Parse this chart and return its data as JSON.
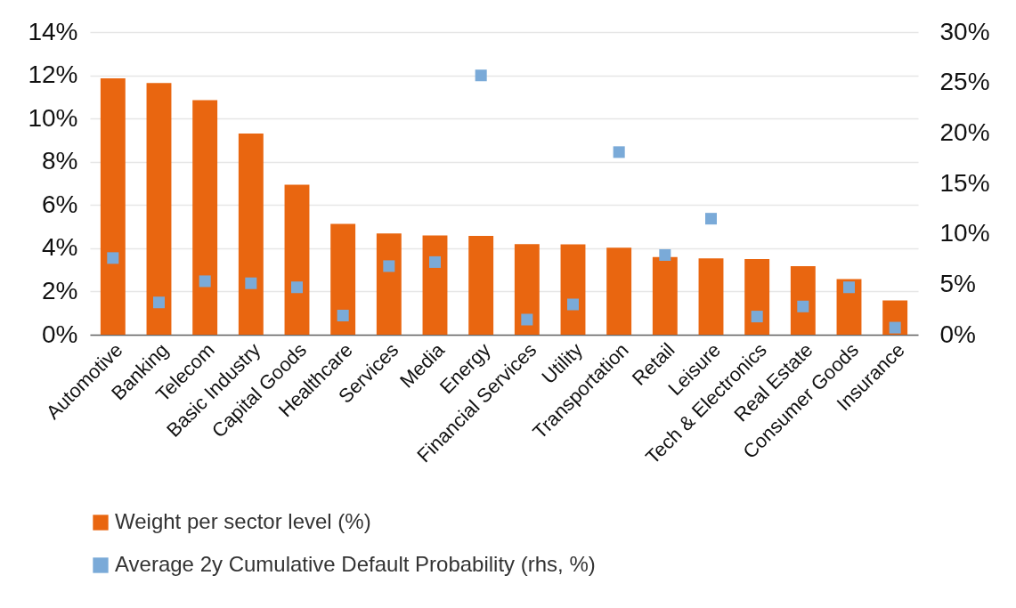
{
  "chart_data": {
    "type": "bar",
    "categories": [
      "Automotive",
      "Banking",
      "Telecom",
      "Basic Industry",
      "Capital Goods",
      "Healthcare",
      "Services",
      "Media",
      "Energy",
      "Financial Services",
      "Utility",
      "Transportation",
      "Retail",
      "Leisure",
      "Tech & Electronics",
      "Real Estate",
      "Consumer Goods",
      "Insurance"
    ],
    "series": [
      {
        "name": "Weight per sector level (%)",
        "color": "#e96610",
        "values": [
          11.86,
          11.64,
          10.85,
          9.31,
          6.94,
          5.13,
          4.68,
          4.59,
          4.57,
          4.19,
          4.18,
          4.02,
          3.59,
          3.53,
          3.5,
          3.17,
          2.57,
          1.59
        ]
      },
      {
        "name": "Average 2y Cumulative Default Probability (rhs, %)",
        "type": "scatter",
        "axis": "y2",
        "color": "#7aaad8",
        "values": [
          7.6,
          3.2,
          5.3,
          5.1,
          4.7,
          1.9,
          6.8,
          7.2,
          25.7,
          1.5,
          3.0,
          18.1,
          7.9,
          11.5,
          1.8,
          2.8,
          4.7,
          0.7
        ]
      }
    ],
    "ylim": [
      0,
      14
    ],
    "yticks": [
      {
        "value": 0,
        "label": "0%"
      },
      {
        "value": 2,
        "label": "2%"
      },
      {
        "value": 4,
        "label": "4%"
      },
      {
        "value": 6,
        "label": "6%"
      },
      {
        "value": 8,
        "label": "8%"
      },
      {
        "value": 10,
        "label": "10%"
      },
      {
        "value": 12,
        "label": "12%"
      },
      {
        "value": 14,
        "label": "14%"
      }
    ],
    "y2lim": [
      0,
      30
    ],
    "y2ticks": [
      {
        "value": 0,
        "label": "0%"
      },
      {
        "value": 5,
        "label": "5%"
      },
      {
        "value": 10,
        "label": "10%"
      },
      {
        "value": 15,
        "label": "15%"
      },
      {
        "value": 20,
        "label": "20%"
      },
      {
        "value": 25,
        "label": "25%"
      },
      {
        "value": 30,
        "label": "30%"
      }
    ],
    "grid": "y",
    "legend": "bottom",
    "marker": "square"
  }
}
